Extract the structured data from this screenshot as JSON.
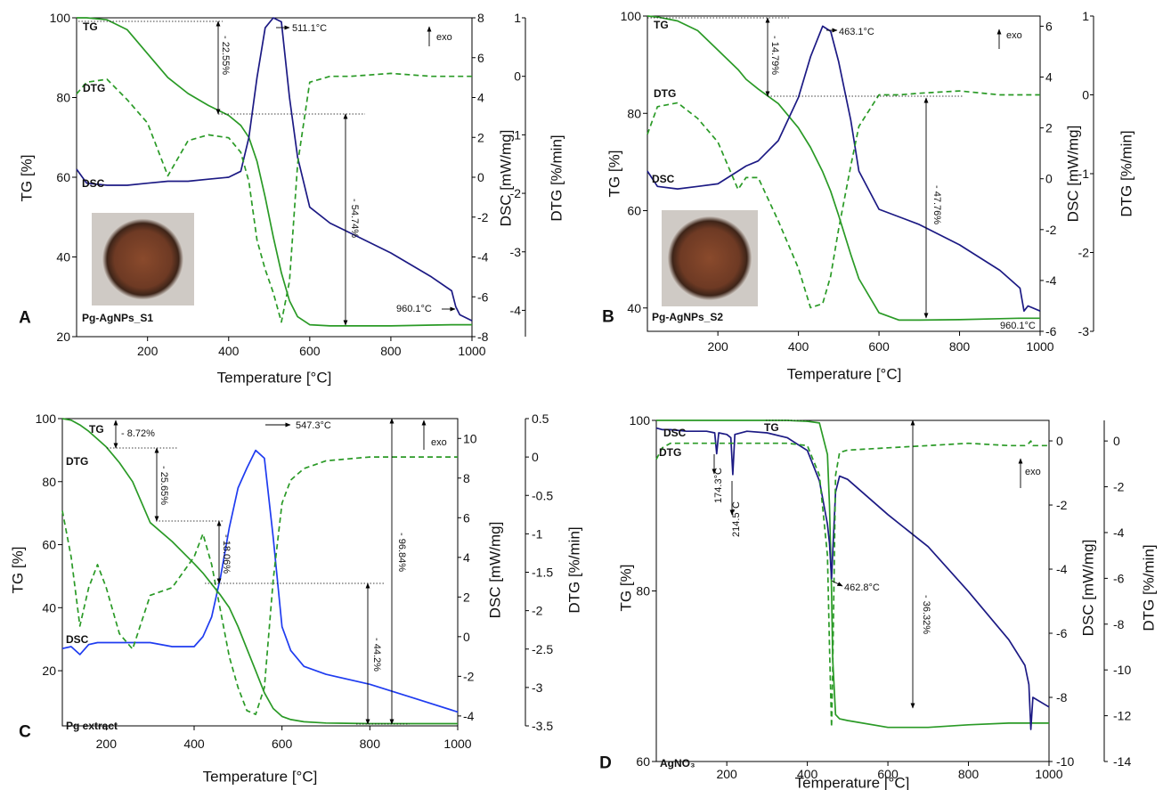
{
  "chart_data": [
    {
      "type": "line",
      "panel_label": "A",
      "sample_label": "Pg-AgNPs_S1",
      "xlabel": "Temperature [°C]",
      "ylabel": "TG [%]",
      "y2label": "DSC [mW/mg]",
      "y3label": "DTG [%/min]",
      "x": [
        25,
        50,
        100,
        150,
        200,
        250,
        300,
        350,
        400,
        430,
        450,
        470,
        490,
        510,
        530,
        550,
        570,
        600,
        650,
        700,
        800,
        900,
        950,
        960,
        970,
        1000
      ],
      "xlim": [
        25,
        1000
      ],
      "xticks": [
        200,
        400,
        600,
        800,
        1000
      ],
      "ylim": [
        20,
        100
      ],
      "yticks": [
        20,
        40,
        60,
        80,
        100
      ],
      "y2lim": [
        -8,
        8
      ],
      "y2ticks": [
        -8,
        -6,
        -4,
        -2,
        0,
        2,
        4,
        6,
        8
      ],
      "y3lim": [
        -4.45,
        1
      ],
      "y3ticks": [
        -4,
        -3,
        -2,
        -1,
        0,
        1
      ],
      "series": [
        {
          "name": "TG",
          "color": "#2a9a26",
          "axis": "y",
          "linestyle": "solid",
          "values": [
            100,
            100,
            99.5,
            97,
            91,
            85,
            81,
            78,
            75.5,
            73,
            70,
            64,
            55,
            45,
            36,
            29,
            25,
            23,
            22.7,
            22.7,
            22.7,
            22.9,
            23,
            23,
            23,
            23
          ]
        },
        {
          "name": "DSC",
          "color": "#1c1a84",
          "axis": "y2",
          "linestyle": "solid",
          "values": [
            0.4,
            -0.3,
            -0.4,
            -0.4,
            -0.3,
            -0.2,
            -0.2,
            -0.1,
            0,
            0.3,
            2,
            5,
            7.5,
            8,
            7.8,
            4,
            1,
            -1.5,
            -2.3,
            -2.8,
            -3.8,
            -5,
            -5.7,
            -6.5,
            -6.9,
            -7.2
          ]
        },
        {
          "name": "DTG",
          "color": "#2a9a26",
          "axis": "y3",
          "linestyle": "dashed",
          "values": [
            -0.3,
            -0.1,
            -0.05,
            -0.4,
            -0.8,
            -1.7,
            -1.1,
            -1.0,
            -1.05,
            -1.3,
            -1.8,
            -2.8,
            -3.3,
            -3.7,
            -4.2,
            -3.5,
            -1.5,
            -0.1,
            0,
            0,
            0.05,
            0,
            0,
            0,
            0,
            0
          ]
        }
      ],
      "annotations": [
        "511.1°C",
        "960.1°C",
        "- 22.55%",
        "- 54.74%",
        "exo"
      ]
    },
    {
      "type": "line",
      "panel_label": "B",
      "sample_label": "Pg-AgNPs_S2",
      "xlabel": "Temperature [°C]",
      "ylabel": "TG [%]",
      "y2label": "DSC [mW/mg]",
      "y3label": "DTG [%/min]",
      "x": [
        25,
        50,
        100,
        150,
        200,
        250,
        270,
        300,
        350,
        400,
        430,
        460,
        480,
        500,
        530,
        550,
        600,
        650,
        700,
        800,
        900,
        950,
        960,
        970,
        1000
      ],
      "xlim": [
        25,
        1000
      ],
      "xticks": [
        200,
        400,
        600,
        800,
        1000
      ],
      "ylim": [
        35.2,
        100
      ],
      "yticks": [
        40,
        60,
        80,
        100
      ],
      "y2lim": [
        -6,
        6.4
      ],
      "y2ticks": [
        -6,
        -4,
        -2,
        0,
        2,
        4,
        6
      ],
      "y3lim": [
        -3,
        1
      ],
      "y3ticks": [
        -3,
        -2,
        -1,
        0,
        1
      ],
      "series": [
        {
          "name": "TG",
          "color": "#2a9a26",
          "axis": "y",
          "linestyle": "solid",
          "values": [
            100,
            99.8,
            99,
            97,
            93,
            89,
            87,
            85,
            82,
            77,
            73,
            68,
            64,
            59,
            51,
            46,
            39,
            37.5,
            37.5,
            37.6,
            37.8,
            37.9,
            37.9,
            37.9,
            37.9
          ]
        },
        {
          "name": "DSC",
          "color": "#1c1a84",
          "axis": "y2",
          "linestyle": "solid",
          "values": [
            0.3,
            -0.3,
            -0.4,
            -0.3,
            -0.2,
            0.3,
            0.5,
            0.7,
            1.5,
            3.2,
            4.8,
            6.0,
            5.8,
            4.6,
            2.3,
            0.3,
            -1.2,
            -1.5,
            -1.8,
            -2.6,
            -3.6,
            -4.3,
            -5.2,
            -5.0,
            -5.2
          ]
        },
        {
          "name": "DTG",
          "color": "#2a9a26",
          "axis": "y3",
          "linestyle": "dashed",
          "values": [
            -0.5,
            -0.15,
            -0.1,
            -0.3,
            -0.6,
            -1.2,
            -1.05,
            -1.05,
            -1.6,
            -2.2,
            -2.7,
            -2.65,
            -2.3,
            -1.7,
            -0.9,
            -0.4,
            0,
            0,
            0.02,
            0.05,
            0,
            0,
            0,
            0,
            0
          ]
        }
      ],
      "annotations": [
        "463.1°C",
        "960.1°C",
        "- 14.79%",
        "- 47.76%",
        "exo"
      ]
    },
    {
      "type": "line",
      "panel_label": "C",
      "sample_label": "Pg extract",
      "xlabel": "Temperature [°C]",
      "ylabel": "TG [%]",
      "y2label": "DSC [mW/mg]",
      "y3label": "DTG [%/min]",
      "x": [
        100,
        120,
        140,
        160,
        180,
        200,
        230,
        260,
        300,
        350,
        400,
        420,
        440,
        460,
        480,
        500,
        520,
        540,
        560,
        580,
        600,
        620,
        650,
        700,
        800,
        900,
        1000
      ],
      "xlim": [
        100,
        1000
      ],
      "xticks": [
        200,
        400,
        600,
        800,
        1000
      ],
      "ylim": [
        2.5,
        100
      ],
      "yticks": [
        20,
        40,
        60,
        80,
        100
      ],
      "y2lim": [
        -4.5,
        11
      ],
      "y2ticks": [
        -4,
        -2,
        0,
        2,
        4,
        6,
        8,
        10
      ],
      "y3lim": [
        -3.5,
        0.5
      ],
      "y3ticks": [
        -3.5,
        -3,
        -2.5,
        -2,
        -1.5,
        -1,
        -0.5,
        0,
        0.5
      ],
      "series": [
        {
          "name": "TG",
          "color": "#2a9a26",
          "axis": "y",
          "linestyle": "solid",
          "values": [
            100,
            99.5,
            98,
            96,
            93.5,
            91,
            86,
            80,
            67,
            61,
            54,
            51,
            47.5,
            44,
            40,
            34,
            27,
            20,
            13,
            8,
            5.5,
            4.5,
            3.8,
            3.4,
            3.2,
            3.2,
            3.2
          ]
        },
        {
          "name": "DSC",
          "color": "#1f3cf0",
          "axis": "y2",
          "linestyle": "solid",
          "values": [
            -0.6,
            -0.5,
            -0.9,
            -0.4,
            -0.3,
            -0.3,
            -0.3,
            -0.3,
            -0.3,
            -0.5,
            -0.5,
            0,
            1,
            3,
            5.5,
            7.5,
            8.5,
            9.4,
            9,
            5,
            0.5,
            -0.7,
            -1.5,
            -1.9,
            -2.4,
            -3.1,
            -3.8
          ]
        },
        {
          "name": "DTG",
          "color": "#2a9a26",
          "axis": "y3",
          "linestyle": "dashed",
          "values": [
            -0.7,
            -1.3,
            -2.2,
            -1.7,
            -1.4,
            -1.7,
            -2.3,
            -2.5,
            -1.8,
            -1.7,
            -1.3,
            -1.0,
            -1.4,
            -2.0,
            -2.6,
            -3.0,
            -3.3,
            -3.35,
            -3.0,
            -1.6,
            -0.6,
            -0.3,
            -0.15,
            -0.05,
            0,
            0,
            0
          ]
        }
      ],
      "annotations": [
        "547.3°C",
        "- 8.72%",
        "- 25.65%",
        "- 18.06%",
        "- 44.2%",
        "- 96.84%",
        "exo"
      ]
    },
    {
      "type": "line",
      "panel_label": "D",
      "sample_label": "AgNO₃",
      "xlabel": "Temperature [°C]",
      "ylabel": "TG [%]",
      "y2label": "DSC [mW/mg]",
      "y3label": "DTG [%/min]",
      "x": [
        25,
        40,
        60,
        100,
        150,
        170,
        175,
        180,
        200,
        210,
        215,
        220,
        250,
        300,
        350,
        400,
        430,
        450,
        455,
        460,
        463,
        470,
        480,
        500,
        600,
        700,
        800,
        900,
        940,
        950,
        955,
        960,
        1000
      ],
      "xlim": [
        25,
        1000
      ],
      "xticks": [
        200,
        400,
        600,
        800,
        1000
      ],
      "ylim": [
        60,
        100
      ],
      "yticks": [
        60,
        80,
        100
      ],
      "y2lim": [
        -10,
        0.64
      ],
      "y2ticks": [
        -10,
        -8,
        -6,
        -4,
        -2,
        0
      ],
      "y3lim": [
        -14,
        0.9
      ],
      "y3ticks": [
        -14,
        -12,
        -10,
        -8,
        -6,
        -4,
        -2,
        0
      ],
      "series": [
        {
          "name": "TG",
          "color": "#2a9a26",
          "axis": "y",
          "linestyle": "solid",
          "values": [
            100,
            100,
            100,
            100,
            100,
            100,
            100,
            100,
            100,
            100,
            100,
            100,
            100,
            100,
            100,
            99.9,
            99.7,
            96,
            90,
            80,
            72,
            65.5,
            65,
            64.8,
            64,
            64,
            64.3,
            64.5,
            64.5,
            64.5,
            64.5,
            64.5,
            64.5
          ]
        },
        {
          "name": "DSC",
          "color": "#1c1a84",
          "axis": "y2",
          "linestyle": "solid",
          "values": [
            0.4,
            0.35,
            0.35,
            0.3,
            0.3,
            0.25,
            -0.4,
            0.25,
            0.2,
            0.1,
            -1.05,
            0.2,
            0.3,
            0.25,
            0.1,
            -0.3,
            -1.25,
            -2.6,
            -3.2,
            -4.3,
            -3.5,
            -1.6,
            -1.1,
            -1.2,
            -2.3,
            -3.3,
            -4.7,
            -6.2,
            -7.0,
            -7.6,
            -9.0,
            -8.0,
            -8.3
          ]
        },
        {
          "name": "DTG",
          "color": "#2a9a26",
          "axis": "y3",
          "linestyle": "dashed",
          "values": [
            -0.8,
            -0.3,
            -0.1,
            -0.1,
            -0.1,
            -0.1,
            -0.1,
            -0.1,
            -0.1,
            -0.1,
            -0.1,
            -0.1,
            -0.1,
            -0.1,
            -0.1,
            -0.2,
            -1.5,
            -5,
            -9,
            -12.5,
            -10,
            -1.5,
            -0.5,
            -0.4,
            -0.3,
            -0.2,
            -0.1,
            -0.2,
            -0.2,
            -0.1,
            0,
            -0.2,
            -0.2
          ]
        }
      ],
      "annotations": [
        "174.3°C",
        "214.5°C",
        "462.8°C",
        "- 36.32%",
        "exo"
      ]
    }
  ]
}
